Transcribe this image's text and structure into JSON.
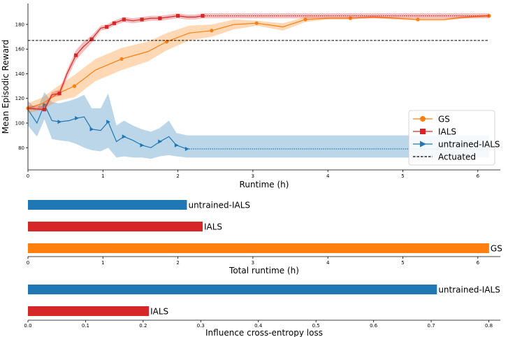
{
  "colors": {
    "GS": "#ff7f0e",
    "IALS": "#d62728",
    "untrained-IALS": "#1f77b4",
    "Actuated": "#000000"
  },
  "chart_data": [
    {
      "type": "line",
      "title": "",
      "xlabel": "Runtime (h)",
      "ylabel": "Mean Episodic Reward",
      "xlim": [
        0,
        6.3
      ],
      "ylim": [
        62,
        197
      ],
      "xticks": [
        "0",
        "1",
        "2",
        "3",
        "4",
        "5",
        "6"
      ],
      "yticks": [
        "80",
        "100",
        "120",
        "140",
        "160",
        "180"
      ],
      "series": [
        {
          "name": "GS",
          "marker": "circle",
          "x": [
            0,
            0.2,
            0.4,
            0.62,
            0.9,
            1.25,
            1.6,
            1.85,
            2.15,
            2.45,
            2.75,
            3.05,
            3.4,
            3.7,
            4.0,
            4.3,
            4.6,
            4.9,
            5.2,
            5.55,
            5.85,
            6.15
          ],
          "y": [
            112,
            116,
            124,
            130,
            143,
            152,
            158,
            166,
            173,
            175,
            180,
            181,
            178,
            184,
            185,
            185,
            186,
            185,
            184,
            184,
            186,
            187
          ],
          "lower": [
            108,
            111,
            118,
            121,
            134,
            143,
            150,
            159,
            167,
            170,
            176,
            179,
            175,
            182,
            184,
            184,
            185,
            184,
            183,
            183,
            185,
            186
          ],
          "upper": [
            116,
            121,
            130,
            139,
            152,
            161,
            166,
            173,
            179,
            180,
            184,
            183,
            181,
            186,
            186,
            186,
            187,
            186,
            185,
            185,
            187,
            188
          ],
          "markers_at": [
            0,
            3,
            5,
            7,
            9,
            11,
            13,
            15,
            18,
            21
          ]
        },
        {
          "name": "IALS",
          "marker": "square",
          "x": [
            0,
            0.22,
            0.32,
            0.42,
            0.52,
            0.64,
            0.74,
            0.85,
            0.97,
            1.05,
            1.15,
            1.28,
            1.4,
            1.52,
            1.64,
            1.76,
            1.88,
            2.0,
            2.12,
            2.23,
            2.33
          ],
          "y": [
            112,
            111,
            123,
            124,
            140,
            155,
            162,
            168,
            177,
            178,
            181,
            184,
            183,
            184,
            185,
            185,
            186,
            187,
            186,
            186,
            187
          ],
          "lower": [
            111,
            110,
            121,
            122,
            136,
            151,
            158,
            165,
            175,
            176,
            179,
            182,
            181,
            182,
            183,
            183,
            184,
            185,
            184,
            184,
            185
          ],
          "upper": [
            114,
            114,
            125,
            127,
            143,
            159,
            166,
            171,
            179,
            180,
            183,
            186,
            185,
            186,
            187,
            187,
            188,
            189,
            188,
            188,
            189
          ],
          "markers_at": [
            1,
            3,
            5,
            7,
            9,
            10,
            11,
            13,
            15,
            17,
            20
          ],
          "extend_to": 6.15
        },
        {
          "name": "untrained-IALS",
          "marker": "triangle-right",
          "x": [
            0,
            0.12,
            0.22,
            0.32,
            0.42,
            0.55,
            0.65,
            0.75,
            0.85,
            0.97,
            1.07,
            1.18,
            1.28,
            1.4,
            1.52,
            1.64,
            1.76,
            1.88,
            1.98,
            2.12
          ],
          "y": [
            111,
            100,
            115,
            102,
            101,
            102,
            104,
            105,
            95,
            94,
            101,
            85,
            89,
            86,
            82,
            80,
            85,
            89,
            82,
            79
          ],
          "lower": [
            98,
            89,
            103,
            87,
            86,
            85,
            83,
            80,
            78,
            77,
            80,
            72,
            73,
            72,
            72,
            71,
            73,
            74,
            73,
            72
          ],
          "upper": [
            118,
            111,
            125,
            117,
            116,
            118,
            120,
            123,
            112,
            112,
            124,
            98,
            102,
            98,
            95,
            93,
            96,
            102,
            92,
            90
          ],
          "markers_at": [
            2,
            4,
            6,
            8,
            10,
            12,
            14,
            16,
            18,
            19
          ],
          "extend_to": 6.15,
          "extend_lower": 72,
          "extend_upper": 90
        },
        {
          "name": "Actuated",
          "style": "dashed",
          "x": [
            0,
            6.15
          ],
          "y": [
            167,
            167
          ]
        }
      ],
      "legend": [
        "GS",
        "IALS",
        "untrained-IALS",
        "Actuated"
      ],
      "legend_position": "right"
    },
    {
      "type": "bar",
      "orientation": "horizontal",
      "xlabel": "Total runtime (h)",
      "xlim": [
        0,
        6.3
      ],
      "xticks": [
        "0",
        "1",
        "2",
        "3",
        "4",
        "5",
        "6"
      ],
      "categories": [
        "untrained-IALS",
        "IALS",
        "GS"
      ],
      "values": [
        2.12,
        2.33,
        6.15
      ]
    },
    {
      "type": "bar",
      "orientation": "horizontal",
      "xlabel": "Influence cross-entropy loss",
      "xlim": [
        0,
        0.82
      ],
      "xticks": [
        "0.0",
        "0.1",
        "0.2",
        "0.3",
        "0.4",
        "0.5",
        "0.6",
        "0.7",
        "0.8"
      ],
      "categories": [
        "untrained-IALS",
        "IALS"
      ],
      "values": [
        0.71,
        0.21
      ]
    }
  ]
}
